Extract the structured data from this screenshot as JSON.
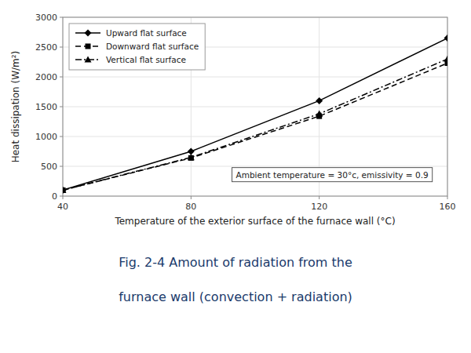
{
  "chart_data": {
    "type": "line",
    "x": [
      40,
      80,
      120,
      160
    ],
    "series": [
      {
        "name": "Upward flat surface",
        "color": "black",
        "marker": "diamond",
        "line_style": "solid",
        "values": [
          100,
          750,
          1600,
          2650
        ]
      },
      {
        "name": "Downward flat surface",
        "color": "black",
        "marker": "square",
        "line_style": "dashed",
        "values": [
          100,
          640,
          1340,
          2230
        ]
      },
      {
        "name": "Vertical flat surface",
        "color": "black",
        "marker": "triangle",
        "line_style": "dashdot",
        "values": [
          100,
          650,
          1380,
          2300
        ]
      }
    ],
    "x_label": "Temperature of the exterior surface of the furnace wall (°C)",
    "y_label": "Heat dissipation (W/m²)",
    "xlim": [
      40,
      160
    ],
    "ylim": [
      0,
      3000
    ],
    "xticks": [
      40,
      80,
      120,
      160
    ],
    "yticks": [
      0,
      500,
      1000,
      1500,
      2000,
      2500,
      3000
    ],
    "annotations": [
      "Ambient temperature = 30°c, emissivity = 0.9"
    ],
    "caption": [
      "Fig. 2-4 Amount of radiation from the",
      "furnace wall (convection + radiation)"
    ],
    "grid": true,
    "legend": "upper left"
  }
}
